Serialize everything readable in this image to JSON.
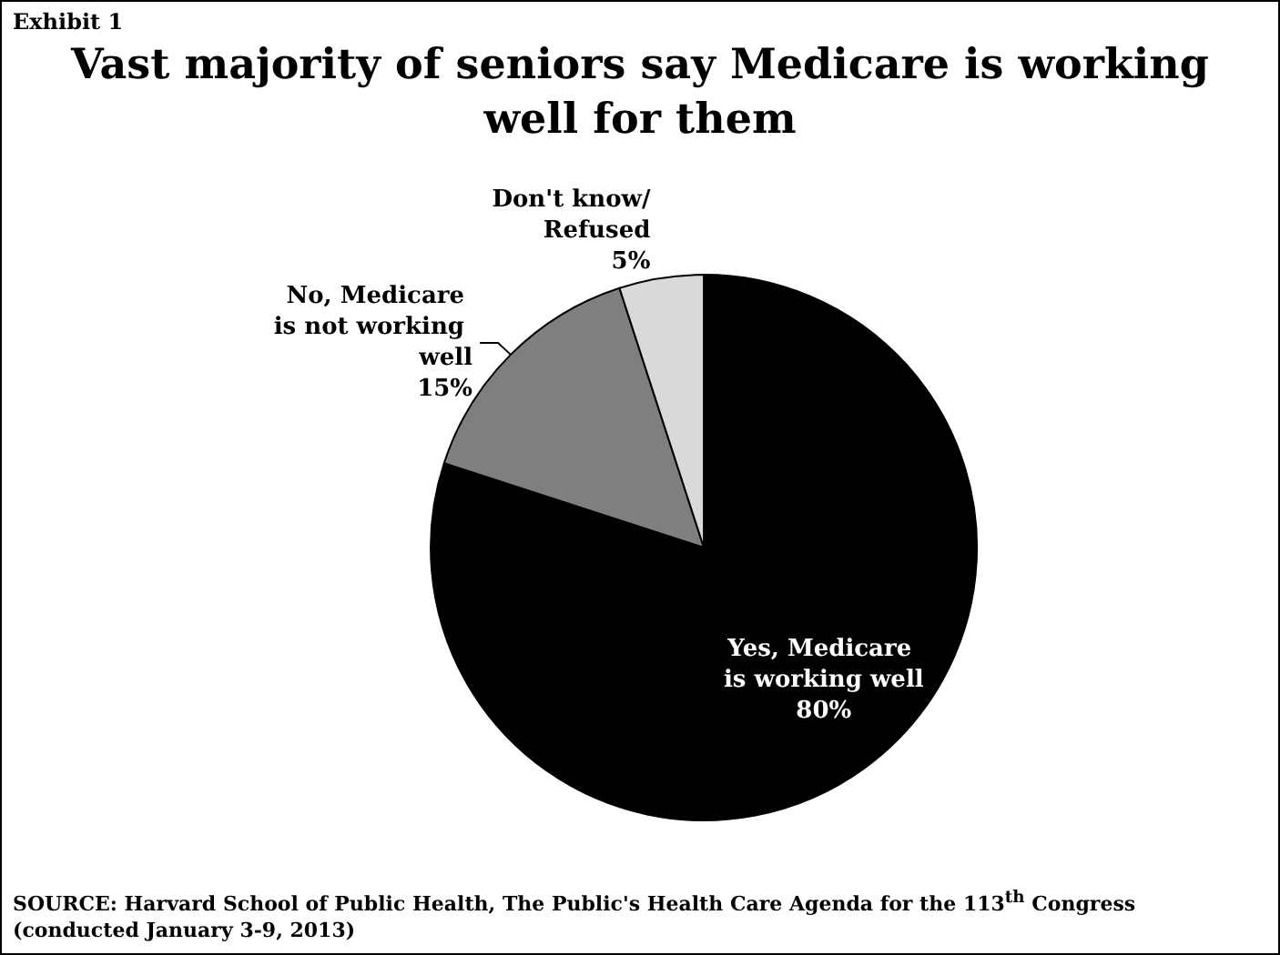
{
  "chart_data": {
    "type": "pie",
    "title": "Vast majority of seniors say Medicare is working well for them",
    "categories": [
      "Yes, Medicare is working well",
      "No, Medicare is not working well",
      "Don't know/Refused"
    ],
    "values": [
      80,
      15,
      5
    ],
    "colors": [
      "#000000",
      "#7f7f7f",
      "#d9d9d9"
    ],
    "value_labels": [
      "80%",
      "15%",
      "5%"
    ],
    "legend": false,
    "annotations": [
      "Exhibit 1",
      "SOURCE: Harvard School of Public Health, The Public's Health Care Agenda for the 113$^{th}$ Congress (conducted January 3-9, 2013)"
    ]
  }
}
